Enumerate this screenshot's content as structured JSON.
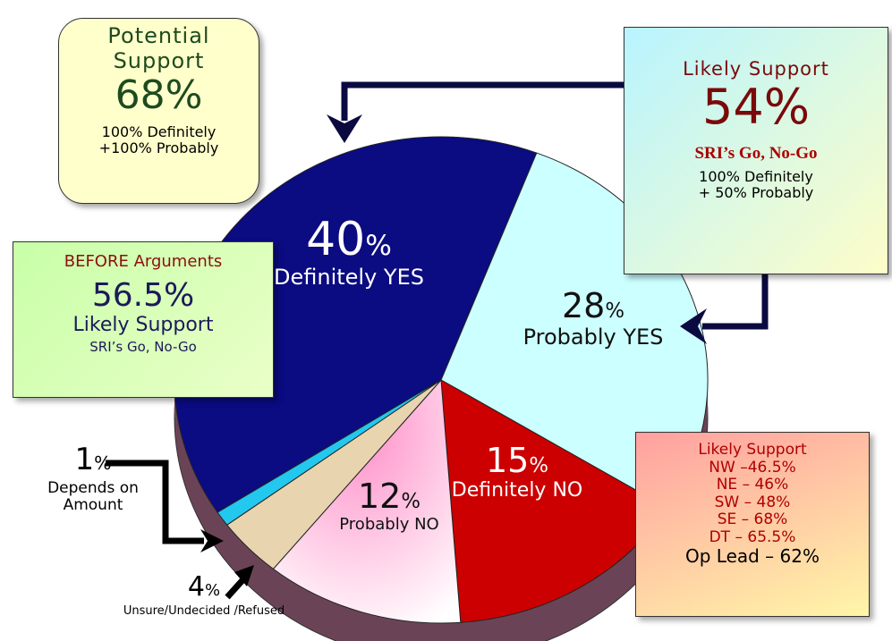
{
  "chart_data": {
    "type": "pie",
    "categories": [
      "Definitely YES",
      "Probably YES",
      "Definitely NO",
      "Probably NO",
      "Unsure/Undecided /Refused",
      "Depends on Amount"
    ],
    "values": [
      40,
      28,
      15,
      12,
      4,
      1
    ],
    "value_unit": "%",
    "colors": [
      "#0b0b82",
      "#ccffff",
      "#cc0000",
      "#ff9fd0",
      "#e8d4ae",
      "#22c8ee"
    ],
    "annotations": [
      {
        "lines": [
          "Potential",
          "Support",
          "68%",
          "100% Definitely",
          "+100% Probably"
        ]
      },
      {
        "lines": [
          "Likely Support",
          "54%",
          "SRI’s Go, No-Go",
          "100% Definitely",
          "+ 50% Probably"
        ]
      },
      {
        "lines": [
          "BEFORE Arguments",
          "56.5%",
          "Likely Support",
          "SRI’s Go, No-Go"
        ]
      },
      {
        "lines": [
          "Likely Support",
          "NW –46.5%",
          "NE – 46%",
          "SW – 48%",
          "SE – 68%",
          "DT – 65.5%",
          "Op Lead – 62%"
        ]
      }
    ]
  }
}
